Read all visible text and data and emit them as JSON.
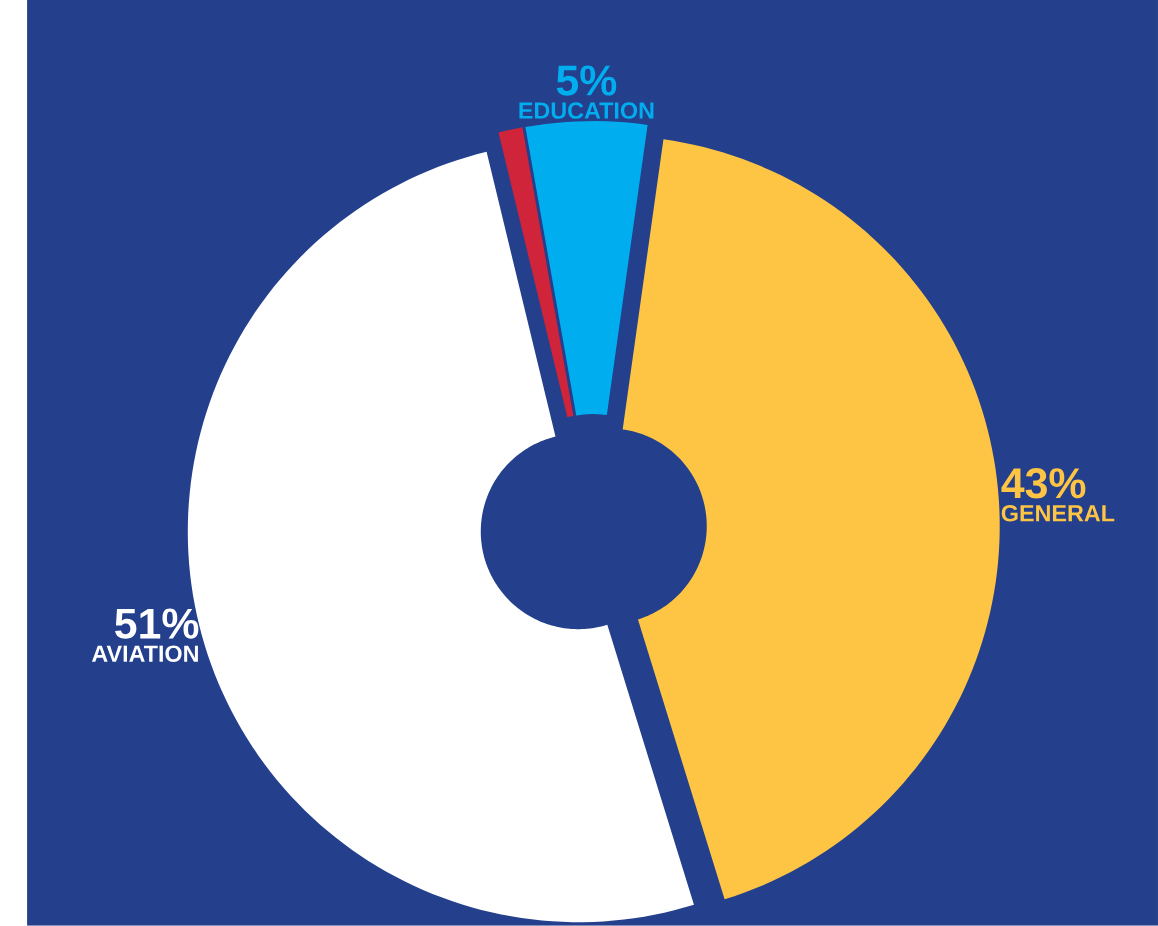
{
  "chart_data": {
    "type": "donut",
    "categories": [
      "GENERAL",
      "AVIATION",
      null,
      "EDUCATION"
    ],
    "values": [
      43,
      51,
      1,
      5
    ],
    "value_labels": [
      "43%",
      "51%",
      null,
      "5%"
    ],
    "colors": [
      "#fdc543",
      "#ffffff",
      "#d0243a",
      "#00aeef"
    ]
  }
}
